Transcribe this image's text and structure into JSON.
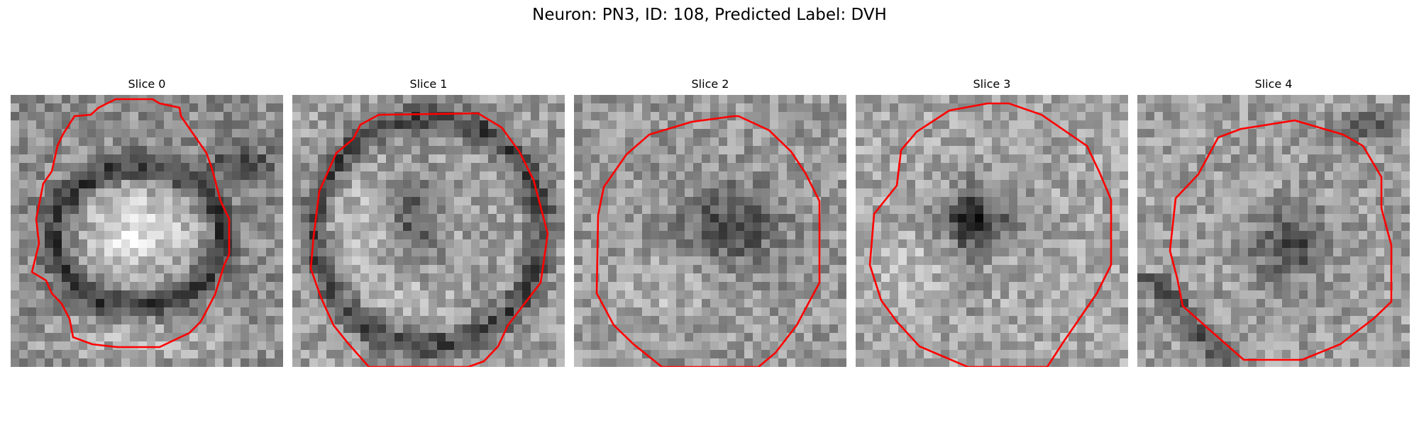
{
  "figure": {
    "title": "Neuron: PN3, ID: 108, Predicted Label: DVH"
  },
  "panels": [
    {
      "title": "Slice 0",
      "pattern": "bright-core-dark-ring",
      "seed": 11
    },
    {
      "title": "Slice 1",
      "pattern": "dark-ring-dark-center",
      "seed": 23
    },
    {
      "title": "Slice 2",
      "pattern": "noisy-dark-center",
      "seed": 37
    },
    {
      "title": "Slice 3",
      "pattern": "dark-cross-center",
      "seed": 53
    },
    {
      "title": "Slice 4",
      "pattern": "dark-blob-right",
      "seed": 71
    }
  ],
  "colors": {
    "contour": "#ff0000"
  }
}
